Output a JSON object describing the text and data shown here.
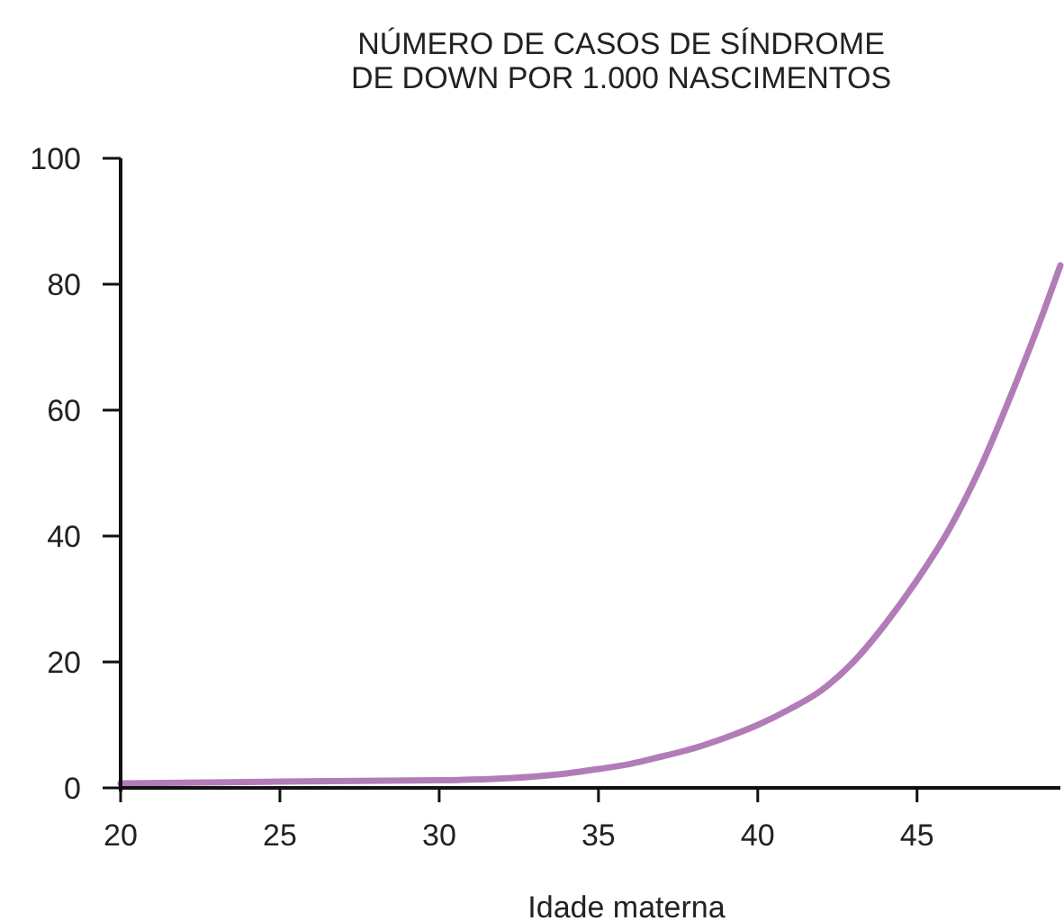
{
  "chart_data": {
    "type": "line",
    "title": "NÚMERO DE CASOS DE SÍNDROME\nDE DOWN POR 1.000 NASCIMENTOS",
    "xlabel": "Idade materna",
    "x": [
      20,
      25,
      30,
      32,
      34,
      35,
      36,
      37,
      38,
      39,
      40,
      41,
      42,
      43,
      44,
      45,
      46,
      47,
      48,
      49,
      49.5
    ],
    "series": [
      {
        "color": "#b27cb8",
        "values": [
          0.7,
          1,
          1.2,
          1.5,
          2.3,
          3,
          3.8,
          5,
          6.3,
          8,
          10,
          12.5,
          15.5,
          20,
          26,
          33,
          41,
          51,
          63,
          76,
          83
        ]
      }
    ],
    "xlim": [
      20,
      49.5
    ],
    "xticks": [
      20,
      25,
      30,
      35,
      40,
      45
    ],
    "ylim": [
      0,
      100
    ],
    "yticks": [
      0,
      20,
      40,
      60,
      80,
      100
    ],
    "grid": false,
    "marker": "none",
    "line_style": "solid"
  }
}
